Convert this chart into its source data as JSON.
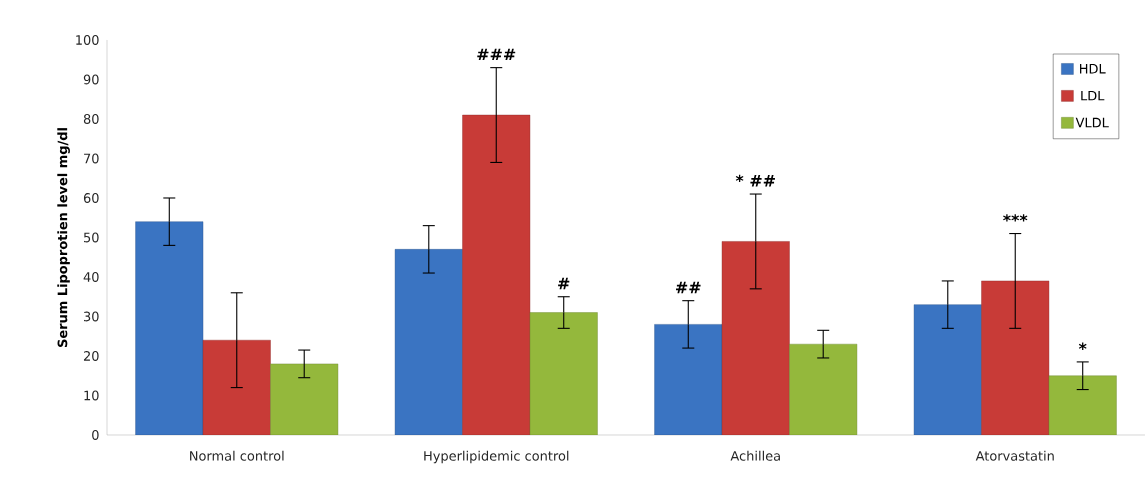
{
  "chart_data": {
    "type": "bar",
    "ylabel": "Serum Lipoprotien level mg/dl",
    "categories": [
      "Normal control",
      "Hyperlipidemic control",
      "Achillea",
      "Atorvastatin"
    ],
    "series": [
      {
        "name": "HDL",
        "color": "#3a74c2",
        "values": [
          54,
          47,
          28,
          33
        ],
        "errors": [
          6,
          6,
          6,
          6
        ]
      },
      {
        "name": "LDL",
        "color": "#c83b37",
        "values": [
          24,
          81,
          49,
          39
        ],
        "errors": [
          12,
          12,
          12,
          12
        ]
      },
      {
        "name": "VLDL",
        "color": "#94b83c",
        "values": [
          18,
          31,
          23,
          15
        ],
        "errors": [
          3.5,
          4,
          3.5,
          3.5
        ]
      }
    ],
    "ylim": [
      0,
      100
    ],
    "yticks": [
      0,
      10,
      20,
      30,
      40,
      50,
      60,
      70,
      80,
      90,
      100
    ],
    "grid": false,
    "legend": "top right",
    "annotations": [
      "###",
      "#",
      "##",
      "* ##",
      "***",
      "*"
    ]
  }
}
